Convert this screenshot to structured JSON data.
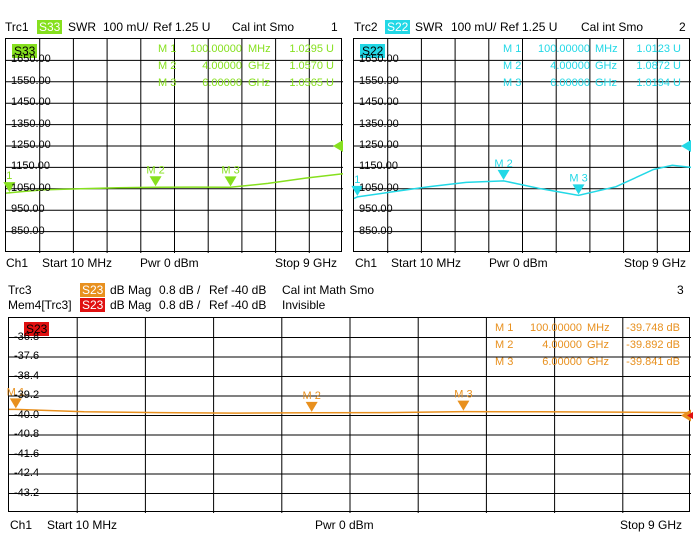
{
  "colors": {
    "s33": "#86e01e",
    "s22": "#22d8e6",
    "s23": "#e8901e",
    "mem": "#e01010"
  },
  "panel1": {
    "trace": "Trc1",
    "param": "S33",
    "format": "SWR",
    "scale": "100 mU/",
    "ref": "Ref 1.25 U",
    "cal": "Cal int Smo",
    "number": "1",
    "markers": [
      {
        "name": "M 1",
        "stim": "100.00000",
        "unit": "MHz",
        "value": "1.0295 U"
      },
      {
        "name": "M 2",
        "stim": "4.00000",
        "unit": "GHz",
        "value": "1.0570 U"
      },
      {
        "name": "M 3",
        "stim": "6.00000",
        "unit": "GHz",
        "value": "1.0565 U"
      }
    ],
    "yticks": [
      "1650.00",
      "1550.00",
      "1450.00",
      "1350.00",
      "1250.00",
      "1150.00",
      "1050.00",
      "950.00",
      "850.00"
    ],
    "marker_labels": [
      "1",
      "M 2",
      "M 3"
    ],
    "footer": {
      "channel": "Ch1",
      "start": "Start  10 MHz",
      "power": "Pwr  0 dBm",
      "stop": "Stop  9 GHz"
    },
    "chart_data": {
      "type": "line",
      "x_unit": "GHz",
      "xlim": [
        0.01,
        9
      ],
      "ylim": [
        750,
        1750
      ],
      "series": [
        {
          "name": "S33",
          "x": [
            0.01,
            0.5,
            1,
            2,
            3,
            4,
            5,
            6,
            7,
            8,
            9
          ],
          "y": [
            1030,
            1038,
            1045,
            1050,
            1055,
            1057,
            1058,
            1057,
            1075,
            1100,
            1120
          ]
        }
      ],
      "markers": [
        {
          "x": 0.1,
          "y": 1029.5
        },
        {
          "x": 4,
          "y": 1057
        },
        {
          "x": 6,
          "y": 1056.5
        }
      ],
      "reference": 1250
    }
  },
  "panel2": {
    "trace": "Trc2",
    "param": "S22",
    "format": "SWR",
    "scale": "100 mU/",
    "ref": "Ref 1.25 U",
    "cal": "Cal int Smo",
    "number": "2",
    "markers": [
      {
        "name": "M 1",
        "stim": "100.00000",
        "unit": "MHz",
        "value": "1.0123 U"
      },
      {
        "name": "M 2",
        "stim": "4.00000",
        "unit": "GHz",
        "value": "1.0872 U"
      },
      {
        "name": "M 3",
        "stim": "6.00000",
        "unit": "GHz",
        "value": "1.0194 U"
      }
    ],
    "yticks": [
      "1650.00",
      "1550.00",
      "1450.00",
      "1350.00",
      "1250.00",
      "1150.00",
      "1050.00",
      "950.00",
      "850.00"
    ],
    "marker_labels": [
      "1",
      "M 2",
      "M 3"
    ],
    "footer": {
      "channel": "Ch1",
      "start": "Start  10 MHz",
      "power": "Pwr  0 dBm",
      "stop": "Stop  9 GHz"
    },
    "chart_data": {
      "type": "line",
      "x_unit": "GHz",
      "xlim": [
        0.01,
        9
      ],
      "ylim": [
        750,
        1750
      ],
      "series": [
        {
          "name": "S22",
          "x": [
            0.01,
            0.1,
            1,
            2,
            3,
            4,
            5,
            6,
            7,
            8,
            8.5,
            9
          ],
          "y": [
            1005,
            1012,
            1035,
            1060,
            1080,
            1087,
            1050,
            1019,
            1060,
            1140,
            1160,
            1150
          ]
        }
      ],
      "markers": [
        {
          "x": 0.1,
          "y": 1012.3
        },
        {
          "x": 4,
          "y": 1087.2
        },
        {
          "x": 6,
          "y": 1019.4
        }
      ],
      "reference": 1250
    }
  },
  "panel3": {
    "trace": "Trc3",
    "param": "S23",
    "format": "dB Mag",
    "scale": "0.8 dB /",
    "ref": "Ref -40 dB",
    "cal": "Cal int Math Smo",
    "number": "3",
    "mem_trace": "Mem4[Trc3]",
    "mem_param": "S23",
    "mem_format": "dB Mag",
    "mem_scale": "0.8 dB /",
    "mem_ref": "Ref -40 dB",
    "mem_status": "Invisible",
    "markers": [
      {
        "name": "M 1",
        "stim": "100.00000",
        "unit": "MHz",
        "value": "-39.748 dB"
      },
      {
        "name": "M 2",
        "stim": "4.00000",
        "unit": "GHz",
        "value": "-39.892 dB"
      },
      {
        "name": "M 3",
        "stim": "6.00000",
        "unit": "GHz",
        "value": "-39.841 dB"
      }
    ],
    "yticks": [
      "-36.8",
      "-37.6",
      "-38.4",
      "-39.2",
      "-40.0",
      "-40.8",
      "-41.6",
      "-42.4",
      "-43.2"
    ],
    "marker_labels": [
      "M 1",
      "M 2",
      "M 3"
    ],
    "footer": {
      "channel": "Ch1",
      "start": "Start  10 MHz",
      "power": "Pwr  0 dBm",
      "stop": "Stop  9 GHz"
    },
    "chart_data": {
      "type": "line",
      "x_unit": "GHz",
      "xlim": [
        0.01,
        9
      ],
      "ylim": [
        -44,
        -36
      ],
      "series": [
        {
          "name": "S23",
          "x": [
            0.01,
            0.1,
            1,
            2,
            3,
            4,
            5,
            6,
            7,
            8,
            9
          ],
          "y": [
            -39.75,
            -39.75,
            -39.85,
            -39.88,
            -39.9,
            -39.89,
            -39.88,
            -39.84,
            -39.85,
            -39.86,
            -39.88
          ]
        }
      ],
      "markers": [
        {
          "x": 0.1,
          "y": -39.748
        },
        {
          "x": 4,
          "y": -39.892
        },
        {
          "x": 6,
          "y": -39.841
        }
      ],
      "reference": -40
    }
  }
}
